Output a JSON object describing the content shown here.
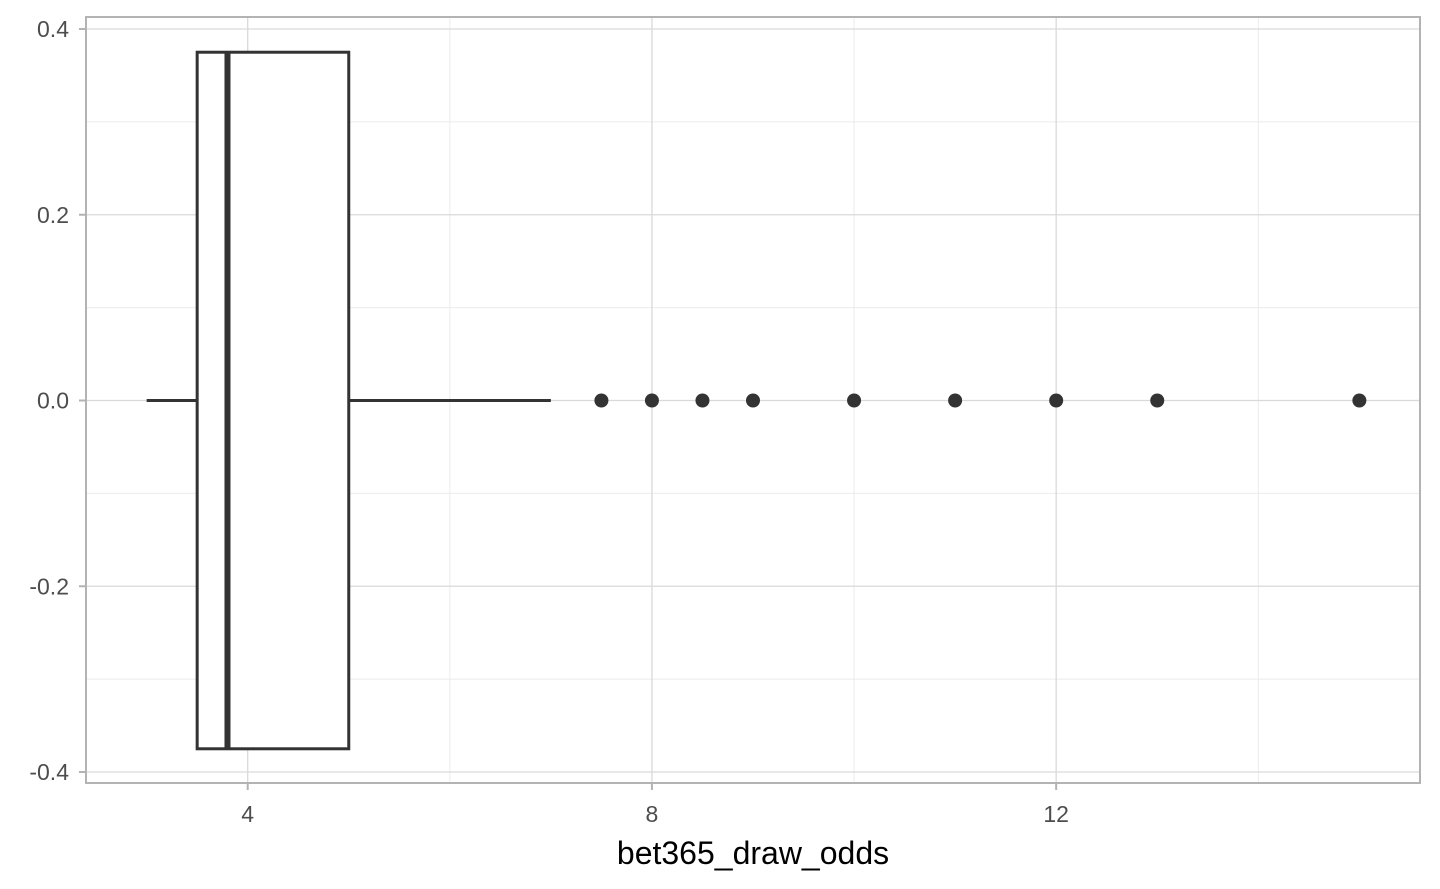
{
  "chart_data": {
    "type": "boxplot",
    "orientation": "horizontal",
    "xlabel": "bet365_draw_odds",
    "ylabel": "",
    "xlim": [
      2.4,
      15.6
    ],
    "ylim": [
      -0.4,
      0.4
    ],
    "x_major_ticks": [
      4,
      8,
      12
    ],
    "x_tick_labels": [
      "4",
      "8",
      "12"
    ],
    "x_minor_gridlines": [
      6,
      10,
      14
    ],
    "y_major_ticks": [
      0.4,
      0.2,
      0.0,
      -0.2,
      -0.4
    ],
    "y_tick_labels": [
      "0.4",
      "0.2",
      "0.0",
      "-0.2",
      "-0.4"
    ],
    "y_minor_gridlines": [
      0.3,
      0.1,
      -0.1,
      -0.3
    ],
    "grid": true,
    "box": {
      "lower_whisker": 3.0,
      "q1": 3.5,
      "median": 3.8,
      "q3": 5.0,
      "upper_whisker": 7.0,
      "y_center": 0.0,
      "y_extent": [
        -0.375,
        0.375
      ]
    },
    "outliers": [
      7.5,
      8.0,
      8.5,
      9.0,
      10.0,
      11.0,
      12.0,
      13.0,
      15.0
    ],
    "colors": {
      "box_line": "#333333",
      "outlier": "#333333",
      "grid_major": "#d9d9d9",
      "grid_minor": "#ebebeb",
      "panel_border": "#b3b3b3",
      "background": "#ffffff"
    }
  }
}
